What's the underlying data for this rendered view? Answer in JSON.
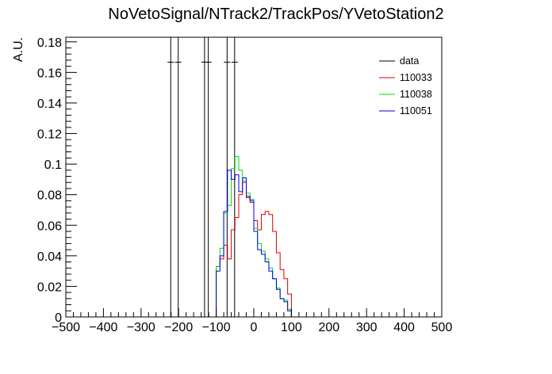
{
  "chart_data": {
    "type": "line",
    "title": "NoVetoSignal/NTrack2/TrackPos/YVetoStation2",
    "xlabel": "",
    "ylabel": "A.U.",
    "xlim": [
      -500,
      500
    ],
    "ylim": [
      0,
      0.183
    ],
    "grid": false,
    "legend_position": "top-right",
    "x_ticks": [
      -500,
      -400,
      -300,
      -200,
      -100,
      0,
      100,
      200,
      300,
      400,
      500
    ],
    "y_ticks": [
      0,
      0.02,
      0.04,
      0.06,
      0.08,
      0.1,
      0.12,
      0.14,
      0.16,
      0.18
    ],
    "x_tick_labels": [
      "−500",
      "−400",
      "−300",
      "−200",
      "−100",
      "0",
      "100",
      "200",
      "300",
      "400",
      "500"
    ],
    "y_tick_labels": [
      "0",
      "0.02",
      "0.04",
      "0.06",
      "0.08",
      "0.1",
      "0.12",
      "0.14",
      "0.16",
      "0.18"
    ],
    "bin_width": 10,
    "series": [
      {
        "name": "data",
        "color": "#000000",
        "style": "markers",
        "points": [
          {
            "x": -221,
            "y": 0.1667
          },
          {
            "x": -201,
            "y": 0.1667
          },
          {
            "x": -131,
            "y": 0.1667
          },
          {
            "x": -121,
            "y": 0.1667
          },
          {
            "x": -71,
            "y": 0.1667
          },
          {
            "x": -51,
            "y": 0.1667
          }
        ]
      },
      {
        "name": "110033",
        "color": "#dd0000",
        "style": "step",
        "bin_edges": [
          -100,
          -90,
          -80,
          -70,
          -60,
          -50,
          -40,
          -30,
          -20,
          -10,
          0,
          10,
          20,
          30,
          40,
          50,
          60,
          70,
          80,
          90,
          100
        ],
        "values": [
          0.033,
          0.038,
          0.047,
          0.038,
          0.057,
          0.065,
          0.08,
          0.088,
          0.078,
          0.075,
          0.063,
          0.057,
          0.067,
          0.069,
          0.067,
          0.056,
          0.042,
          0.031,
          0.025,
          0.015
        ]
      },
      {
        "name": "110038",
        "color": "#00dd00",
        "style": "step",
        "bin_edges": [
          -100,
          -90,
          -80,
          -70,
          -60,
          -50,
          -40,
          -30,
          -20,
          -10,
          0,
          10,
          20,
          30,
          40,
          50,
          60,
          70,
          80,
          90,
          100
        ],
        "values": [
          0.033,
          0.045,
          0.068,
          0.073,
          0.097,
          0.105,
          0.096,
          0.089,
          0.081,
          0.077,
          0.058,
          0.048,
          0.043,
          0.038,
          0.032,
          0.025,
          0.019,
          0.012,
          0.011,
          0.005
        ]
      },
      {
        "name": "110051",
        "color": "#0000dd",
        "style": "step",
        "bin_edges": [
          -100,
          -90,
          -80,
          -70,
          -60,
          -50,
          -40,
          -30,
          -20,
          -10,
          0,
          10,
          20,
          30,
          40,
          50,
          60,
          70,
          80,
          90,
          100
        ],
        "values": [
          0.03,
          0.04,
          0.069,
          0.096,
          0.09,
          0.093,
          0.082,
          0.091,
          0.079,
          0.076,
          0.056,
          0.044,
          0.041,
          0.036,
          0.03,
          0.025,
          0.018,
          0.012,
          0.01,
          0.004
        ]
      }
    ],
    "vertical_lines": [
      -221,
      -201,
      -131,
      -121,
      -71,
      -51
    ]
  }
}
